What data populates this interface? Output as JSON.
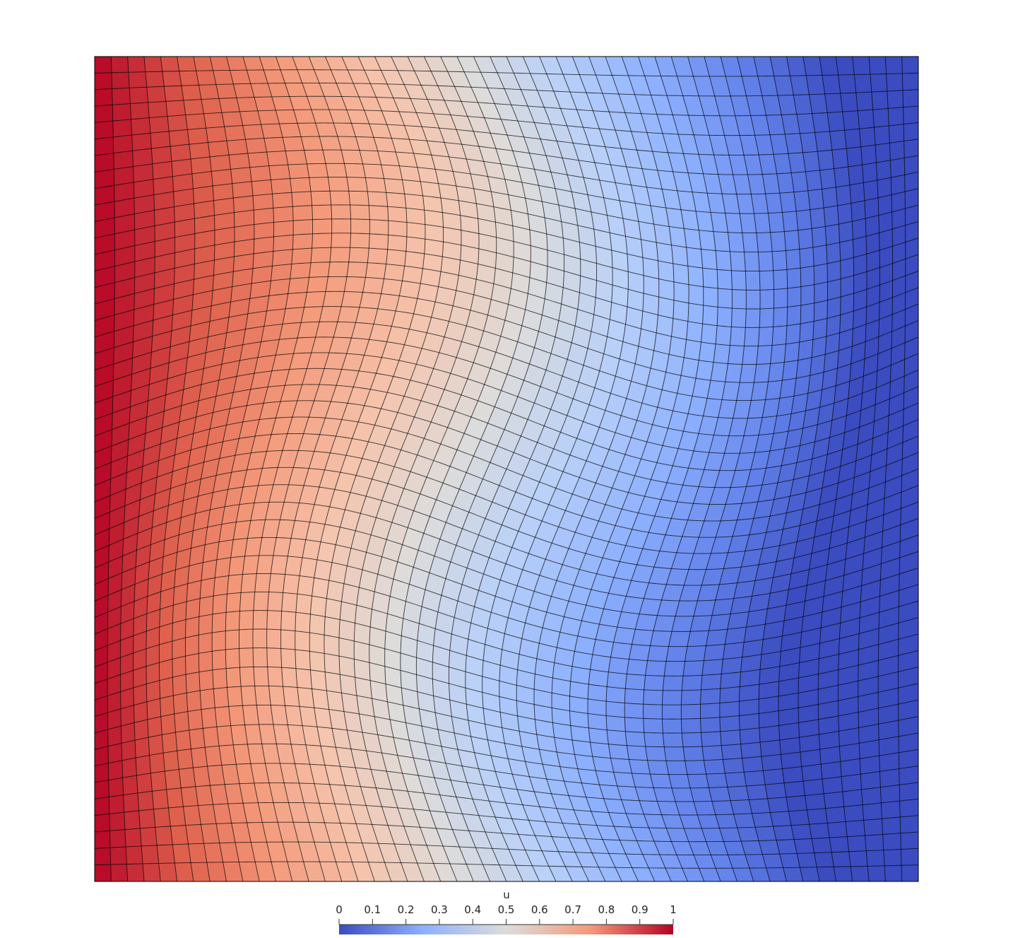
{
  "colorbar": {
    "title": "u",
    "range": [
      0,
      1
    ],
    "tick_labels": [
      "0",
      "0.1",
      "0.2",
      "0.3",
      "0.4",
      "0.5",
      "0.6",
      "0.7",
      "0.8",
      "0.9",
      "1"
    ],
    "colormap": [
      "#3b4cc0",
      "#dddcdb",
      "#b40426"
    ]
  },
  "mesh": {
    "cells_x": 50,
    "cells_y": 50,
    "line_color": "#000000"
  }
}
